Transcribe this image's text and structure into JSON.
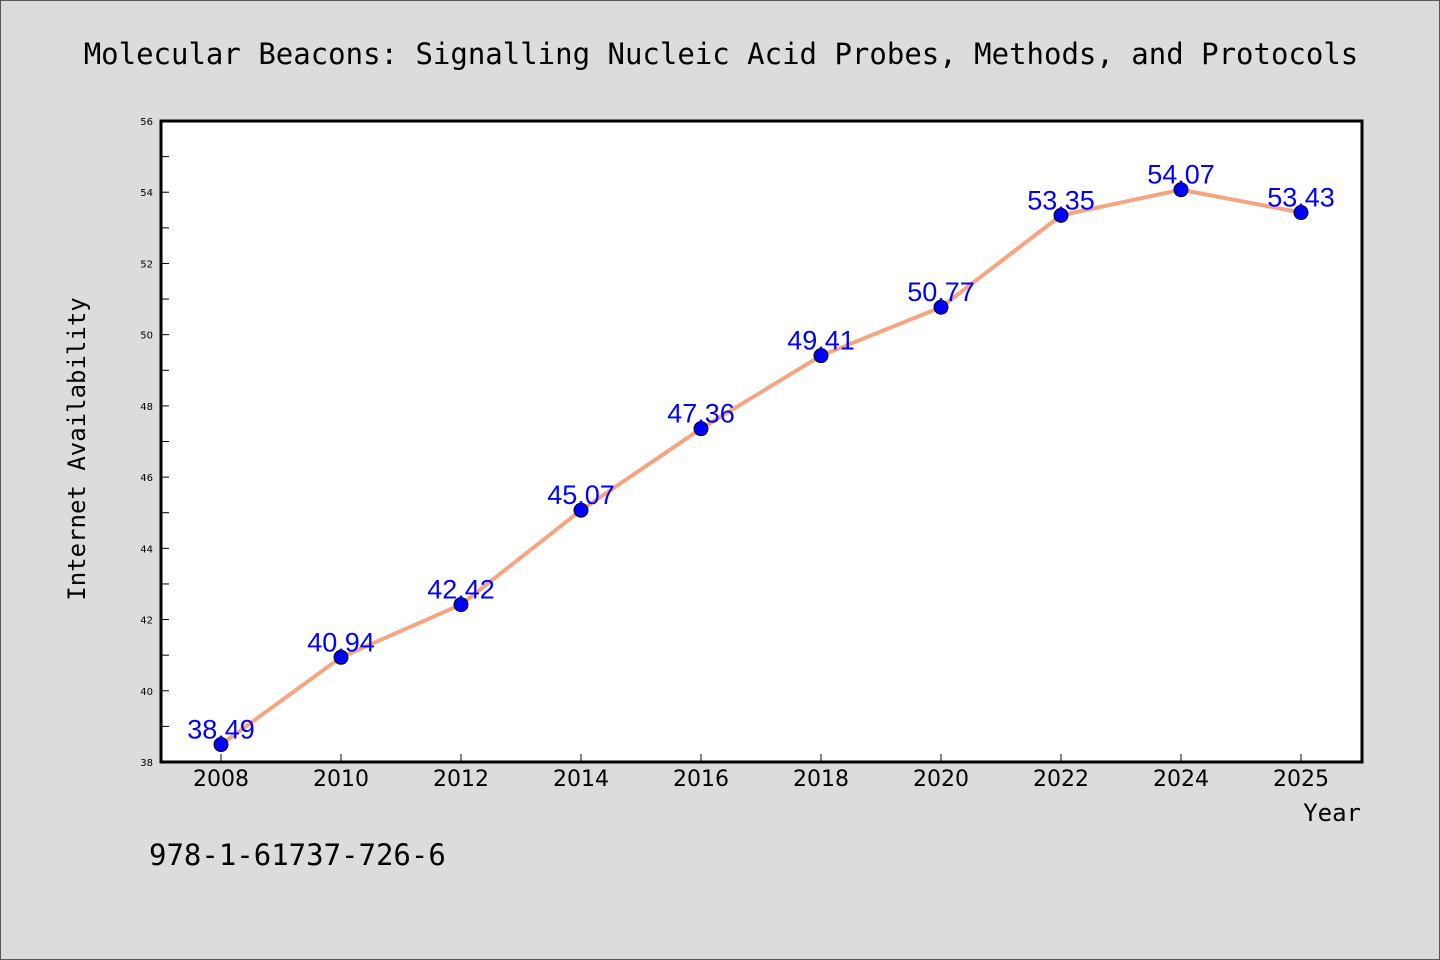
{
  "chart_data": {
    "type": "line",
    "title": "Molecular Beacons: Signalling Nucleic Acid Probes, Methods, and Protocols",
    "xlabel": "Year",
    "ylabel": "Internet Availability",
    "categories": [
      "2008",
      "2010",
      "2012",
      "2014",
      "2016",
      "2018",
      "2020",
      "2022",
      "2024",
      "2025"
    ],
    "series": [
      {
        "values": [
          38.49,
          40.94,
          42.42,
          45.07,
          47.36,
          49.41,
          50.77,
          53.35,
          54.07,
          53.43
        ]
      }
    ],
    "data_labels": [
      "38.49",
      "40.94",
      "42.42",
      "45.07",
      "47.36",
      "49.41",
      "50.77",
      "53.35",
      "54.07",
      "53.43"
    ],
    "ylim": [
      38,
      56
    ],
    "yticks": [
      38,
      40,
      42,
      44,
      46,
      48,
      50,
      52,
      54,
      56
    ],
    "grid": false,
    "colors": {
      "line": "#f4a582",
      "marker": "#0000ff",
      "data_label": "#0000ff",
      "background": "#dcdcdc",
      "plot_background": "#ffffff"
    }
  },
  "footer": {
    "isbn": "978-1-61737-726-6"
  }
}
